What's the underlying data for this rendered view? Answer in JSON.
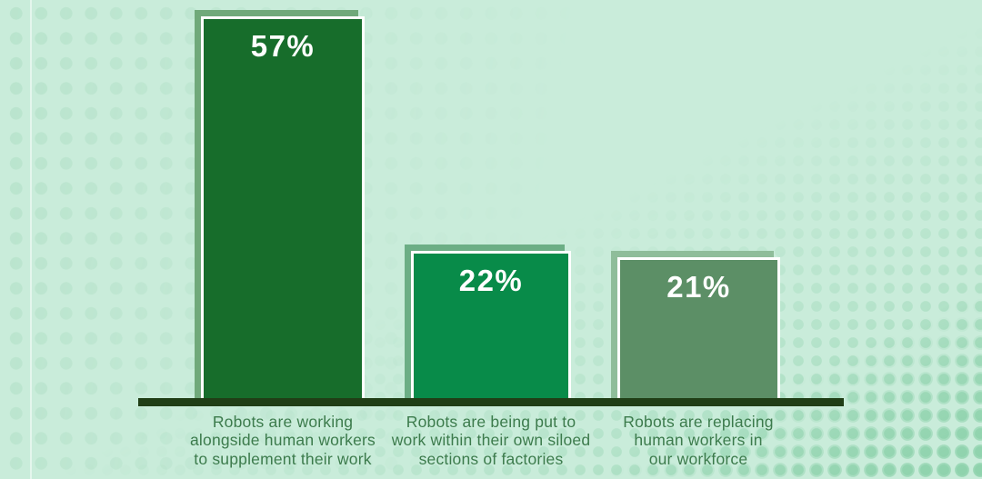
{
  "page": {
    "background": "#c9ecda",
    "decor": {
      "left_dots_color": "#b8e3cc",
      "right_dots_color": "#8ed2ac",
      "seam_color": "rgba(255,255,255,0.5)"
    }
  },
  "chart_data": {
    "type": "bar",
    "title": "",
    "categories": [
      "Robots are working alongside human workers to supplement their work",
      "Robots are being put to work within their own siloed sections of factories",
      "Robots are replacing human workers in our workforce"
    ],
    "values": [
      57,
      22,
      21
    ],
    "ylim": [
      0,
      60
    ],
    "grid": false,
    "legend": false,
    "axis_color": "#203e16",
    "value_label_color": "#ffffff",
    "caption_color": "#3c7b4c",
    "bars": [
      {
        "value": 57,
        "display": "57%",
        "fill": "#176d2b",
        "shadow_fill": "#70a97a",
        "caption": "Robots are working\nalongside human workers\nto supplement their work"
      },
      {
        "value": 22,
        "display": "22%",
        "fill": "#088b49",
        "shadow_fill": "#6cae85",
        "caption": "Robots are being put to\nwork within their own siloed\nsections of factories"
      },
      {
        "value": 21,
        "display": "21%",
        "fill": "#5c8f66",
        "shadow_fill": "#8fbd9a",
        "caption": "Robots are replacing\nhuman workers in\nour workforce"
      }
    ]
  }
}
